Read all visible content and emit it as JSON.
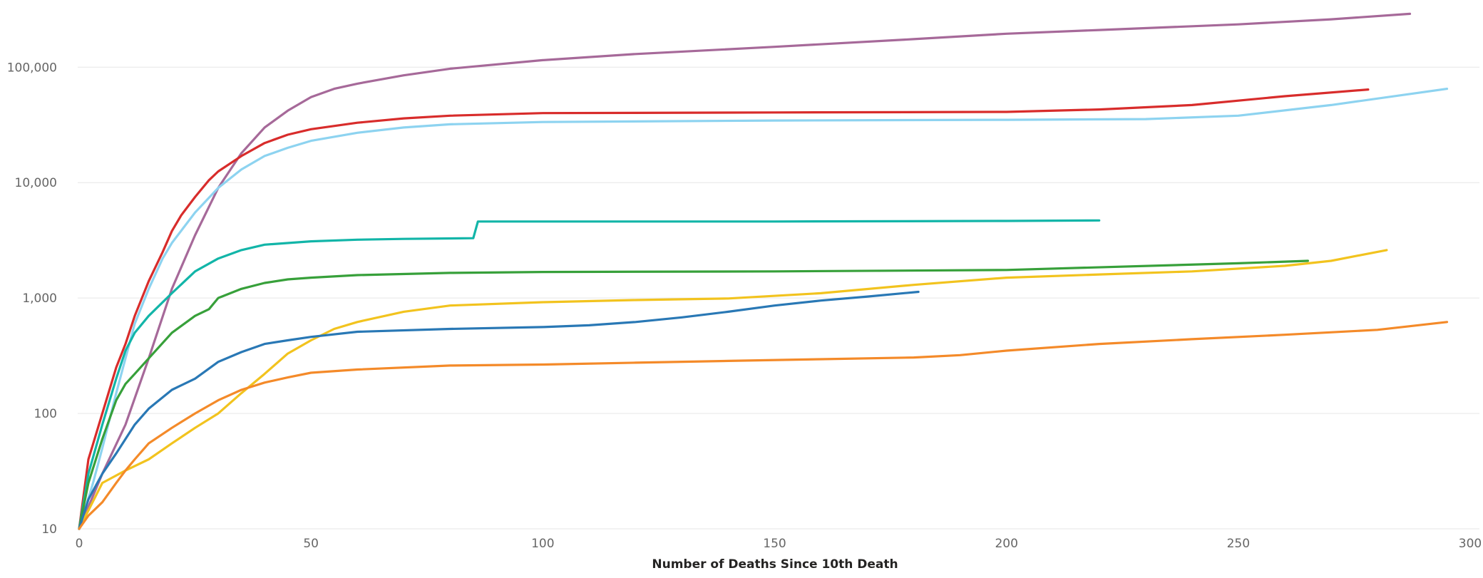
{
  "chart_data": {
    "type": "line",
    "title": "",
    "xlabel": "Number of Deaths Since 10th Death",
    "ylabel": "",
    "xlim": [
      0,
      300
    ],
    "ylim": [
      10,
      300000
    ],
    "y_scale": "log",
    "grid": true,
    "legend": "none",
    "x_ticks": [
      {
        "value": 0,
        "label": "0"
      },
      {
        "value": 50,
        "label": "50"
      },
      {
        "value": 100,
        "label": "100"
      },
      {
        "value": 150,
        "label": "150"
      },
      {
        "value": 200,
        "label": "200"
      },
      {
        "value": 250,
        "label": "250"
      },
      {
        "value": 300,
        "label": "300"
      }
    ],
    "y_ticks": [
      {
        "value": 10,
        "label": "10"
      },
      {
        "value": 100,
        "label": "100"
      },
      {
        "value": 1000,
        "label": "1,000"
      },
      {
        "value": 10000,
        "label": "10,000"
      },
      {
        "value": 100000,
        "label": "100,000"
      }
    ],
    "series": [
      {
        "color": "#a66999",
        "points": [
          [
            0,
            10
          ],
          [
            5,
            30
          ],
          [
            10,
            80
          ],
          [
            15,
            300
          ],
          [
            20,
            1200
          ],
          [
            25,
            3500
          ],
          [
            30,
            9000
          ],
          [
            35,
            18000
          ],
          [
            40,
            30000
          ],
          [
            45,
            42000
          ],
          [
            50,
            55000
          ],
          [
            55,
            65000
          ],
          [
            60,
            72000
          ],
          [
            70,
            85000
          ],
          [
            80,
            97000
          ],
          [
            100,
            115000
          ],
          [
            120,
            130000
          ],
          [
            150,
            150000
          ],
          [
            180,
            175000
          ],
          [
            200,
            195000
          ],
          [
            220,
            210000
          ],
          [
            250,
            235000
          ],
          [
            270,
            260000
          ],
          [
            287,
            290000
          ]
        ]
      },
      {
        "color": "#d82c2b",
        "points": [
          [
            0,
            10
          ],
          [
            2,
            40
          ],
          [
            5,
            100
          ],
          [
            8,
            250
          ],
          [
            10,
            400
          ],
          [
            12,
            700
          ],
          [
            15,
            1400
          ],
          [
            18,
            2500
          ],
          [
            20,
            3800
          ],
          [
            22,
            5200
          ],
          [
            25,
            7500
          ],
          [
            28,
            10500
          ],
          [
            30,
            12500
          ],
          [
            35,
            17000
          ],
          [
            40,
            22000
          ],
          [
            45,
            26000
          ],
          [
            50,
            29000
          ],
          [
            60,
            33000
          ],
          [
            70,
            36000
          ],
          [
            80,
            38000
          ],
          [
            100,
            40000
          ],
          [
            150,
            40500
          ],
          [
            200,
            41000
          ],
          [
            220,
            43000
          ],
          [
            240,
            47000
          ],
          [
            260,
            56000
          ],
          [
            278,
            64000
          ]
        ]
      },
      {
        "color": "#8dd3f0",
        "points": [
          [
            0,
            10
          ],
          [
            3,
            25
          ],
          [
            5,
            50
          ],
          [
            8,
            150
          ],
          [
            10,
            300
          ],
          [
            12,
            600
          ],
          [
            15,
            1200
          ],
          [
            18,
            2200
          ],
          [
            20,
            3000
          ],
          [
            25,
            5500
          ],
          [
            30,
            9000
          ],
          [
            35,
            13000
          ],
          [
            40,
            17000
          ],
          [
            45,
            20000
          ],
          [
            50,
            23000
          ],
          [
            60,
            27000
          ],
          [
            70,
            30000
          ],
          [
            80,
            32000
          ],
          [
            100,
            33500
          ],
          [
            150,
            34500
          ],
          [
            200,
            35000
          ],
          [
            230,
            35500
          ],
          [
            250,
            38000
          ],
          [
            270,
            47000
          ],
          [
            295,
            65000
          ]
        ]
      },
      {
        "color": "#12b5a8",
        "points": [
          [
            0,
            10
          ],
          [
            2,
            30
          ],
          [
            5,
            80
          ],
          [
            8,
            200
          ],
          [
            10,
            350
          ],
          [
            12,
            500
          ],
          [
            15,
            700
          ],
          [
            20,
            1100
          ],
          [
            25,
            1700
          ],
          [
            30,
            2200
          ],
          [
            35,
            2600
          ],
          [
            40,
            2900
          ],
          [
            50,
            3100
          ],
          [
            60,
            3200
          ],
          [
            70,
            3250
          ],
          [
            85,
            3300
          ],
          [
            86,
            4600
          ],
          [
            100,
            4600
          ],
          [
            150,
            4600
          ],
          [
            200,
            4650
          ],
          [
            220,
            4700
          ]
        ]
      },
      {
        "color": "#37a03a",
        "points": [
          [
            0,
            10
          ],
          [
            2,
            25
          ],
          [
            5,
            60
          ],
          [
            8,
            130
          ],
          [
            10,
            180
          ],
          [
            12,
            220
          ],
          [
            15,
            300
          ],
          [
            20,
            500
          ],
          [
            25,
            700
          ],
          [
            28,
            800
          ],
          [
            30,
            1000
          ],
          [
            35,
            1200
          ],
          [
            40,
            1350
          ],
          [
            45,
            1450
          ],
          [
            50,
            1500
          ],
          [
            60,
            1580
          ],
          [
            80,
            1650
          ],
          [
            100,
            1680
          ],
          [
            150,
            1700
          ],
          [
            200,
            1750
          ],
          [
            250,
            2000
          ],
          [
            265,
            2100
          ]
        ]
      },
      {
        "color": "#f2c31e",
        "points": [
          [
            0,
            10
          ],
          [
            5,
            25
          ],
          [
            10,
            32
          ],
          [
            15,
            40
          ],
          [
            20,
            55
          ],
          [
            25,
            75
          ],
          [
            30,
            100
          ],
          [
            35,
            150
          ],
          [
            40,
            220
          ],
          [
            45,
            330
          ],
          [
            50,
            430
          ],
          [
            55,
            540
          ],
          [
            60,
            620
          ],
          [
            70,
            760
          ],
          [
            80,
            860
          ],
          [
            100,
            920
          ],
          [
            120,
            960
          ],
          [
            140,
            990
          ],
          [
            160,
            1100
          ],
          [
            180,
            1300
          ],
          [
            200,
            1500
          ],
          [
            220,
            1600
          ],
          [
            240,
            1700
          ],
          [
            260,
            1900
          ],
          [
            270,
            2100
          ],
          [
            282,
            2600
          ]
        ]
      },
      {
        "color": "#2978b5",
        "points": [
          [
            0,
            10
          ],
          [
            2,
            18
          ],
          [
            5,
            30
          ],
          [
            8,
            45
          ],
          [
            10,
            60
          ],
          [
            12,
            80
          ],
          [
            15,
            110
          ],
          [
            20,
            160
          ],
          [
            25,
            200
          ],
          [
            30,
            280
          ],
          [
            35,
            340
          ],
          [
            40,
            400
          ],
          [
            45,
            430
          ],
          [
            50,
            460
          ],
          [
            60,
            510
          ],
          [
            80,
            540
          ],
          [
            100,
            560
          ],
          [
            110,
            580
          ],
          [
            120,
            620
          ],
          [
            130,
            680
          ],
          [
            140,
            760
          ],
          [
            150,
            860
          ],
          [
            160,
            950
          ],
          [
            170,
            1030
          ],
          [
            181,
            1130
          ]
        ]
      },
      {
        "color": "#f48a29",
        "points": [
          [
            0,
            10
          ],
          [
            2,
            13
          ],
          [
            5,
            17
          ],
          [
            8,
            25
          ],
          [
            10,
            32
          ],
          [
            12,
            40
          ],
          [
            15,
            55
          ],
          [
            20,
            75
          ],
          [
            25,
            100
          ],
          [
            30,
            130
          ],
          [
            35,
            160
          ],
          [
            40,
            185
          ],
          [
            45,
            205
          ],
          [
            50,
            225
          ],
          [
            60,
            240
          ],
          [
            80,
            260
          ],
          [
            100,
            265
          ],
          [
            120,
            275
          ],
          [
            140,
            285
          ],
          [
            160,
            295
          ],
          [
            180,
            305
          ],
          [
            190,
            320
          ],
          [
            200,
            350
          ],
          [
            220,
            400
          ],
          [
            240,
            440
          ],
          [
            260,
            480
          ],
          [
            280,
            530
          ],
          [
            295,
            620
          ]
        ]
      }
    ]
  }
}
